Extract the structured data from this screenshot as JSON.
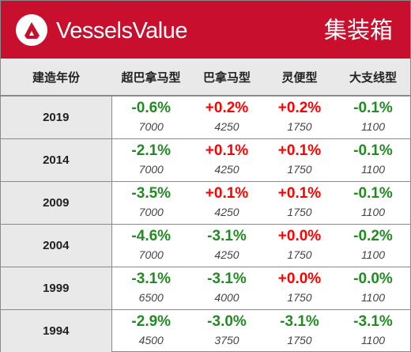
{
  "header": {
    "brand_name": "VesselsValue",
    "title": "集装箱",
    "colors": {
      "background": "#c8102e",
      "text": "#ffffff"
    }
  },
  "table": {
    "columns": [
      "建造年份",
      "超巴拿马型",
      "巴拿马型",
      "灵便型",
      "大支线型"
    ],
    "rows": [
      {
        "year": "2019",
        "cells": [
          {
            "change": "-0.6%",
            "value": "7000"
          },
          {
            "change": "+0.2%",
            "value": "4250"
          },
          {
            "change": "+0.2%",
            "value": "1750"
          },
          {
            "change": "-0.1%",
            "value": "1100"
          }
        ]
      },
      {
        "year": "2014",
        "cells": [
          {
            "change": "-2.1%",
            "value": "7000"
          },
          {
            "change": "+0.1%",
            "value": "4250"
          },
          {
            "change": "+0.1%",
            "value": "1750"
          },
          {
            "change": "-0.1%",
            "value": "1100"
          }
        ]
      },
      {
        "year": "2009",
        "cells": [
          {
            "change": "-3.5%",
            "value": "7000"
          },
          {
            "change": "+0.1%",
            "value": "4250"
          },
          {
            "change": "+0.1%",
            "value": "1750"
          },
          {
            "change": "-0.1%",
            "value": "1100"
          }
        ]
      },
      {
        "year": "2004",
        "cells": [
          {
            "change": "-4.6%",
            "value": "7000"
          },
          {
            "change": "-3.1%",
            "value": "4250"
          },
          {
            "change": "+0.0%",
            "value": "1750"
          },
          {
            "change": "-0.2%",
            "value": "1100"
          }
        ]
      },
      {
        "year": "1999",
        "cells": [
          {
            "change": "-3.1%",
            "value": "6500"
          },
          {
            "change": "-3.1%",
            "value": "4000"
          },
          {
            "change": "+0.0%",
            "value": "1750"
          },
          {
            "change": "-0.0%",
            "value": "1100"
          }
        ]
      },
      {
        "year": "1994",
        "cells": [
          {
            "change": "-2.9%",
            "value": "4500"
          },
          {
            "change": "-3.0%",
            "value": "3750"
          },
          {
            "change": "-3.1%",
            "value": "1750"
          },
          {
            "change": "-3.1%",
            "value": "1100"
          }
        ]
      }
    ]
  },
  "colors": {
    "negative": "#228b22",
    "positive": "#ff0000",
    "header_row_bg": "#e9e9e9",
    "border": "#8a8a8a"
  }
}
